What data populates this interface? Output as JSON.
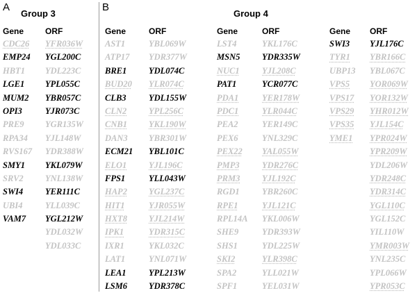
{
  "panels": {
    "a": {
      "letter": "A",
      "title": "Group 3",
      "gene_header": "Gene",
      "orf_header": "ORF",
      "genes": [
        {
          "t": "CDC26",
          "s": "dotted"
        },
        {
          "t": "EMP24",
          "s": "black"
        },
        {
          "t": "HBT1",
          "s": "gray"
        },
        {
          "t": "LGE1",
          "s": "black"
        },
        {
          "t": "MUM2",
          "s": "black"
        },
        {
          "t": "OPI3",
          "s": "black"
        },
        {
          "t": "PRE9",
          "s": "gray"
        },
        {
          "t": "RPA34",
          "s": "gray"
        },
        {
          "t": "RVS167",
          "s": "gray"
        },
        {
          "t": "SMY1",
          "s": "black"
        },
        {
          "t": "SRV2",
          "s": "gray"
        },
        {
          "t": "SWI4",
          "s": "black"
        },
        {
          "t": "UBI4",
          "s": "gray"
        },
        {
          "t": "VAM7",
          "s": "black"
        }
      ],
      "orfs": [
        {
          "t": "YFR036W",
          "s": "dotted"
        },
        {
          "t": "YGL200C",
          "s": "black"
        },
        {
          "t": "YDL223C",
          "s": "gray"
        },
        {
          "t": "YPL055C",
          "s": "black"
        },
        {
          "t": "YBR057C",
          "s": "black"
        },
        {
          "t": "YJR073C",
          "s": "black"
        },
        {
          "t": "YGR135W",
          "s": "gray"
        },
        {
          "t": "YJL148W",
          "s": "gray"
        },
        {
          "t": "YDR388W",
          "s": "gray"
        },
        {
          "t": "YKL079W",
          "s": "black"
        },
        {
          "t": "YNL138W",
          "s": "gray"
        },
        {
          "t": "YER111C",
          "s": "black"
        },
        {
          "t": "YLL039C",
          "s": "gray"
        },
        {
          "t": "YGL212W",
          "s": "black"
        },
        {
          "t": "YDL032W",
          "s": "gray"
        },
        {
          "t": "YDL033C",
          "s": "gray"
        }
      ]
    },
    "b": {
      "letter": "B",
      "title": "Group 4",
      "gene_header": "Gene",
      "orf_header": "ORF",
      "columns": [
        {
          "genes": [
            {
              "t": "AST1",
              "s": "gray"
            },
            {
              "t": "ATP17",
              "s": "gray"
            },
            {
              "t": "BRE1",
              "s": "black"
            },
            {
              "t": "BUD20",
              "s": "dotted"
            },
            {
              "t": "CLB3",
              "s": "black"
            },
            {
              "t": "CLN2",
              "s": "dotted"
            },
            {
              "t": "CNB1",
              "s": "dotted"
            },
            {
              "t": "DAN3",
              "s": "gray"
            },
            {
              "t": "ECM21",
              "s": "black"
            },
            {
              "t": "ELO1",
              "s": "dotted"
            },
            {
              "t": "FPS1",
              "s": "black"
            },
            {
              "t": "HAP2",
              "s": "dotted"
            },
            {
              "t": "HIT1",
              "s": "dotted"
            },
            {
              "t": "HXT8",
              "s": "dotted"
            },
            {
              "t": "IPK1",
              "s": "dotted"
            },
            {
              "t": "IXR1",
              "s": "gray"
            },
            {
              "t": "LAT1",
              "s": "gray"
            },
            {
              "t": "LEA1",
              "s": "black"
            },
            {
              "t": "LSM6",
              "s": "black"
            }
          ],
          "orfs": [
            {
              "t": "YBL069W",
              "s": "gray"
            },
            {
              "t": "YDR377W",
              "s": "gray"
            },
            {
              "t": "YDL074C",
              "s": "black"
            },
            {
              "t": "YLR074C",
              "s": "dotted"
            },
            {
              "t": "YDL155W",
              "s": "black"
            },
            {
              "t": "YPL256C",
              "s": "dotted"
            },
            {
              "t": "YKL190W",
              "s": "dotted"
            },
            {
              "t": "YBR301W",
              "s": "gray"
            },
            {
              "t": "YBL101C",
              "s": "black"
            },
            {
              "t": "YJL196C",
              "s": "dotted"
            },
            {
              "t": "YLL043W",
              "s": "black"
            },
            {
              "t": "YGL237C",
              "s": "dotted"
            },
            {
              "t": "YJR055W",
              "s": "dotted"
            },
            {
              "t": "YJL214W",
              "s": "dotted"
            },
            {
              "t": "YDR315C",
              "s": "dotted"
            },
            {
              "t": "YKL032C",
              "s": "gray"
            },
            {
              "t": "YNL071W",
              "s": "gray"
            },
            {
              "t": "YPL213W",
              "s": "black"
            },
            {
              "t": "YDR378C",
              "s": "black"
            }
          ]
        },
        {
          "genes": [
            {
              "t": "LST4",
              "s": "gray"
            },
            {
              "t": "MSN5",
              "s": "black"
            },
            {
              "t": "NUC1",
              "s": "dotted"
            },
            {
              "t": "PAT1",
              "s": "black"
            },
            {
              "t": "PDA1",
              "s": "dotted"
            },
            {
              "t": "PDC1",
              "s": "dotted"
            },
            {
              "t": "PEA2",
              "s": "gray"
            },
            {
              "t": "PEX6",
              "s": "gray"
            },
            {
              "t": "PEX22",
              "s": "dotted"
            },
            {
              "t": "PMP3",
              "s": "dotted"
            },
            {
              "t": "PRM3",
              "s": "dotted"
            },
            {
              "t": "RGD1",
              "s": "gray"
            },
            {
              "t": "RPE1",
              "s": "dotted"
            },
            {
              "t": "RPL14A",
              "s": "gray"
            },
            {
              "t": "SHE9",
              "s": "gray"
            },
            {
              "t": "SHS1",
              "s": "gray"
            },
            {
              "t": "SKI2",
              "s": "dotted"
            },
            {
              "t": "SPA2",
              "s": "gray"
            },
            {
              "t": "SPF1",
              "s": "gray"
            }
          ],
          "orfs": [
            {
              "t": "YKL176C",
              "s": "gray"
            },
            {
              "t": "YDR335W",
              "s": "black"
            },
            {
              "t": "YJL208C",
              "s": "dotted"
            },
            {
              "t": "YCR077C",
              "s": "black"
            },
            {
              "t": "YER178W",
              "s": "dotted"
            },
            {
              "t": "YLR044C",
              "s": "dotted"
            },
            {
              "t": "YER149C",
              "s": "gray"
            },
            {
              "t": "YNL329C",
              "s": "gray"
            },
            {
              "t": "YAL055W",
              "s": "dotted"
            },
            {
              "t": "YDR276C",
              "s": "dotted"
            },
            {
              "t": "YJL192C",
              "s": "dotted"
            },
            {
              "t": "YBR260C",
              "s": "gray"
            },
            {
              "t": "YJL121C",
              "s": "dotted"
            },
            {
              "t": "YKL006W",
              "s": "gray"
            },
            {
              "t": "YDR393W",
              "s": "gray"
            },
            {
              "t": "YDL225W",
              "s": "gray"
            },
            {
              "t": "YLR398C",
              "s": "dotted"
            },
            {
              "t": "YLL021W",
              "s": "gray"
            },
            {
              "t": "YEL031W",
              "s": "gray"
            }
          ]
        },
        {
          "genes": [
            {
              "t": "SWI3",
              "s": "black"
            },
            {
              "t": "TYR1",
              "s": "dotted"
            },
            {
              "t": "UBP13",
              "s": "gray"
            },
            {
              "t": "VPS5",
              "s": "dotted"
            },
            {
              "t": "VPS17",
              "s": "dotted"
            },
            {
              "t": "VPS29",
              "s": "dotted"
            },
            {
              "t": "VPS35",
              "s": "dotted"
            },
            {
              "t": "YME1",
              "s": "dotted"
            }
          ],
          "orfs": [
            {
              "t": "YJL176C",
              "s": "black"
            },
            {
              "t": "YBR166C",
              "s": "dotted"
            },
            {
              "t": "YBL067C",
              "s": "gray"
            },
            {
              "t": "YOR069W",
              "s": "dotted"
            },
            {
              "t": "YOR132W",
              "s": "dotted"
            },
            {
              "t": "YHR012W",
              "s": "dotted"
            },
            {
              "t": "YJL154C",
              "s": "dotted"
            },
            {
              "t": "YPR024W",
              "s": "dotted"
            },
            {
              "t": "YPR209W",
              "s": "dotted"
            },
            {
              "t": "YDL206W",
              "s": "gray"
            },
            {
              "t": "YDR248C",
              "s": "dotted"
            },
            {
              "t": "YDR314C",
              "s": "dotted"
            },
            {
              "t": "YGL110C",
              "s": "dotted"
            },
            {
              "t": "YGL152C",
              "s": "gray"
            },
            {
              "t": "YIL110W",
              "s": "gray"
            },
            {
              "t": "YMR003W",
              "s": "dotted"
            },
            {
              "t": "YNL235C",
              "s": "gray"
            },
            {
              "t": "YPL066W",
              "s": "gray"
            },
            {
              "t": "YPR053C",
              "s": "dotted"
            }
          ]
        }
      ]
    }
  }
}
